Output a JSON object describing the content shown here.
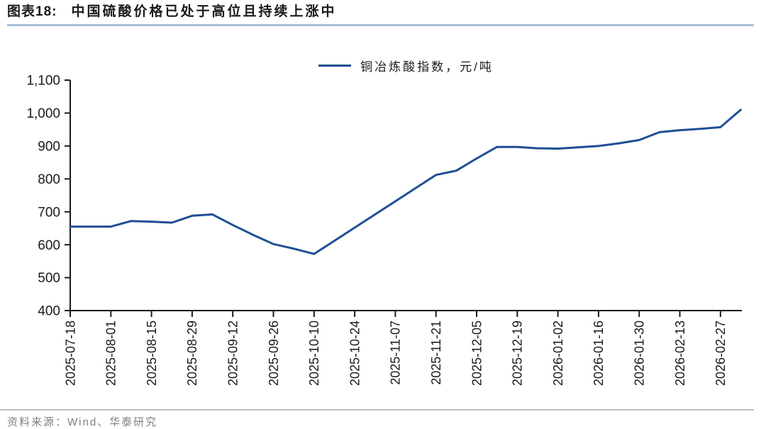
{
  "header": {
    "label": "图表18:",
    "title": "中国硫酸价格已处于高位且持续上涨中"
  },
  "legend": {
    "label": "铜冶炼酸指数，元/吨",
    "color": "#1F4E96"
  },
  "footer": {
    "source": "资料来源：Wind、华泰研究"
  },
  "colors": {
    "series_line": "#1F4E96",
    "title_underline": "#A9BFD9",
    "axis": "#1a1a1a",
    "source_text": "#7F7F7F"
  },
  "chart_data": {
    "type": "line",
    "title": "中国硫酸价格已处于高位且持续上涨中",
    "legend": [
      "铜冶炼酸指数，元/吨"
    ],
    "legend_position": "top-center",
    "grid": false,
    "ylim": [
      400,
      1100
    ],
    "ytick_step": 100,
    "xlabel": "",
    "ylabel": "",
    "x": [
      "2025-07-18",
      "2025-07-25",
      "2025-08-01",
      "2025-08-08",
      "2025-08-15",
      "2025-08-22",
      "2025-08-29",
      "2025-09-05",
      "2025-09-12",
      "2025-09-19",
      "2025-09-26",
      "2025-10-03",
      "2025-10-10",
      "2025-10-17",
      "2025-10-24",
      "2025-10-31",
      "2025-11-07",
      "2025-11-14",
      "2025-11-21",
      "2025-11-28",
      "2025-12-05",
      "2025-12-12",
      "2025-12-19",
      "2025-12-26",
      "2026-01-02",
      "2026-01-09",
      "2026-01-16",
      "2026-01-23",
      "2026-01-30",
      "2026-02-06",
      "2026-02-13",
      "2026-02-20",
      "2026-02-27",
      "2026-03-06"
    ],
    "x_tick_labels": [
      "2025-07-18",
      "2025-08-01",
      "2025-08-15",
      "2025-08-29",
      "2025-09-12",
      "2025-09-26",
      "2025-10-10",
      "2025-10-24",
      "2025-11-07",
      "2025-11-21",
      "2025-12-05",
      "2025-12-19",
      "2026-01-02",
      "2026-01-16",
      "2026-01-30",
      "2026-02-13",
      "2026-02-27"
    ],
    "x_tick_every": 2,
    "series": [
      {
        "name": "铜冶炼酸指数，元/吨",
        "color": "#1F4E96",
        "values": [
          655,
          655,
          655,
          672,
          670,
          667,
          688,
          692,
          660,
          630,
          602,
          588,
          572,
          612,
          652,
          692,
          732,
          772,
          812,
          825,
          862,
          897,
          897,
          893,
          892,
          896,
          900,
          908,
          918,
          942,
          948,
          952,
          957,
          1010
        ]
      }
    ]
  }
}
